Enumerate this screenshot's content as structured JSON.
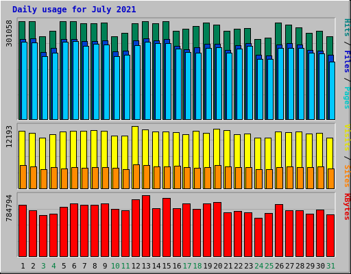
{
  "chart_data": {
    "type": "bar",
    "title": "Daily usage for July 2021",
    "days": [
      "1",
      "2",
      "3",
      "4",
      "5",
      "6",
      "7",
      "8",
      "9",
      "10",
      "11",
      "12",
      "13",
      "14",
      "15",
      "16",
      "17",
      "18",
      "19",
      "20",
      "21",
      "22",
      "23",
      "24",
      "25",
      "26",
      "27",
      "28",
      "29",
      "30",
      "31"
    ],
    "weekend_days": [
      "3",
      "4",
      "10",
      "11",
      "17",
      "18",
      "24",
      "25",
      "31"
    ],
    "panels": [
      {
        "name": "top",
        "max_label": "301058",
        "max": 301058,
        "legend": [
          {
            "text": "Pages",
            "color": "#00c8c8"
          },
          {
            "text": " / ",
            "color": "#000000"
          },
          {
            "text": "Files",
            "color": "#0000c8"
          },
          {
            "text": " / ",
            "color": "#000000"
          },
          {
            "text": "Hits",
            "color": "#008080"
          }
        ],
        "series": [
          {
            "name": "Hits",
            "color": "#008055",
            "values": [
              300000,
              298000,
              253000,
              270000,
              300000,
              299000,
              292000,
              292000,
              294000,
              253000,
              264000,
              292000,
              300000,
              293000,
              299000,
              270000,
              276000,
              284000,
              294000,
              289000,
              270000,
              277000,
              279000,
              244000,
              250000,
              295000,
              289000,
              280000,
              264000,
              269000,
              254000
            ]
          },
          {
            "name": "Files",
            "color": "#0040d0",
            "values": [
              245000,
              247000,
              206000,
              218000,
              246000,
              246000,
              239000,
              238000,
              240000,
              207000,
              210000,
              240000,
              247000,
              240000,
              246000,
              225000,
              213000,
              220000,
              230000,
              231000,
              212000,
              227000,
              232000,
              198000,
              195000,
              228000,
              233000,
              229000,
              212000,
              210000,
              197000
            ]
          },
          {
            "name": "Pages",
            "color": "#00c8ff",
            "values": [
              236000,
              234000,
              193000,
              203000,
              237000,
              238000,
              225000,
              230000,
              229000,
              194000,
              198000,
              226000,
              236000,
              232000,
              233000,
              215000,
              206000,
              203000,
              218000,
              220000,
              204000,
              215000,
              224000,
              184000,
              185000,
              217000,
              219000,
              217000,
              203000,
              201000,
              176000
            ]
          }
        ]
      },
      {
        "name": "middle",
        "max_label": "12193",
        "max": 12193,
        "legend": [
          {
            "text": "Sites",
            "color": "#ff8000"
          },
          {
            "text": " / ",
            "color": "#000000"
          },
          {
            "text": "Visits",
            "color": "#e0e000"
          }
        ],
        "series": [
          {
            "name": "Visits",
            "color": "#ffff00",
            "values": [
              11200,
              10900,
              9900,
              10600,
              11100,
              11300,
              11300,
              11400,
              11300,
              10300,
              10300,
              12193,
              11500,
              11100,
              11100,
              11000,
              10600,
              11200,
              10900,
              11600,
              11400,
              10600,
              10700,
              9900,
              9900,
              11100,
              11000,
              11100,
              10700,
              10900,
              10000
            ]
          },
          {
            "name": "Sites",
            "color": "#ff8c00",
            "values": [
              4600,
              4400,
              3800,
              4300,
              4000,
              4200,
              4100,
              4200,
              4200,
              4100,
              3800,
              4800,
              4600,
              4400,
              4400,
              4500,
              4200,
              4100,
              4200,
              4700,
              4400,
              4300,
              4300,
              3800,
              3900,
              4200,
              4400,
              4300,
              4200,
              4400,
              4000
            ]
          }
        ]
      },
      {
        "name": "bottom",
        "max_label": "784794",
        "max": 784794,
        "legend": [
          {
            "text": "KBytes",
            "color": "#e00000"
          }
        ],
        "series": [
          {
            "name": "KBytes",
            "color": "#ff0000",
            "values": [
              660000,
              590000,
              530000,
              550000,
              640000,
              680000,
              660000,
              660000,
              680000,
              610000,
              590000,
              730000,
              784794,
              620000,
              750000,
              620000,
              680000,
              610000,
              680000,
              700000,
              570000,
              580000,
              570000,
              500000,
              560000,
              670000,
              590000,
              590000,
              550000,
              600000,
              540000
            ]
          }
        ]
      }
    ]
  }
}
